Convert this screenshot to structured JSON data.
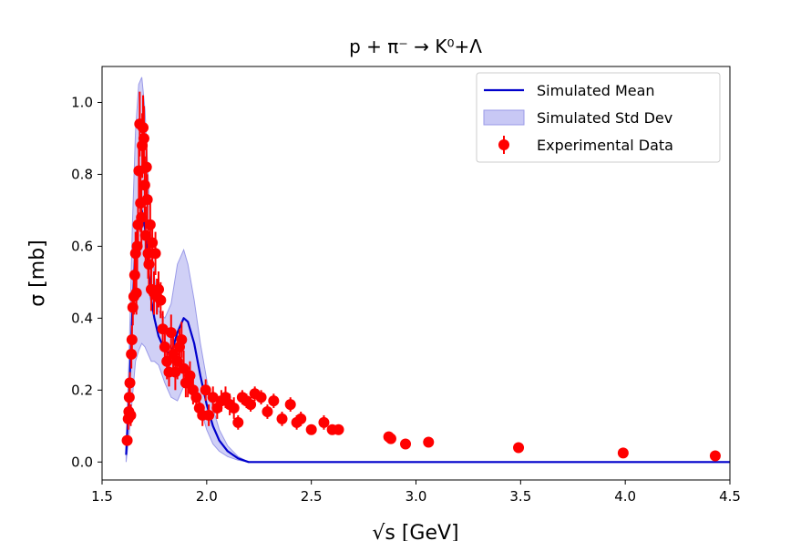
{
  "chart_data": {
    "type": "line",
    "title": "p + π⁻ → K⁰+Λ",
    "xlabel": "√s [GeV]",
    "ylabel": "σ [mb]",
    "xlim": [
      1.5,
      4.5
    ],
    "ylim": [
      -0.05,
      1.1
    ],
    "xticks": [
      1.5,
      2.0,
      2.5,
      3.0,
      3.5,
      4.0,
      4.5
    ],
    "xtick_labels": [
      "1.5",
      "2.0",
      "2.5",
      "3.0",
      "3.5",
      "4.0",
      "4.5"
    ],
    "yticks": [
      0.0,
      0.2,
      0.4,
      0.6,
      0.8,
      1.0
    ],
    "ytick_labels": [
      "0.0",
      "0.2",
      "0.4",
      "0.6",
      "0.8",
      "1.0"
    ],
    "grid": false,
    "legend_position": "top-right",
    "legend": [
      "Simulated Mean",
      "Simulated Std Dev",
      "Experimental Data"
    ],
    "colors": {
      "mean": "#0000cc",
      "band_fill": "#c8c8f5",
      "band_edge": "#9a9ae8",
      "data": "#ff0000"
    },
    "series": [
      {
        "name": "Simulated Mean",
        "x": [
          1.615,
          1.63,
          1.645,
          1.66,
          1.675,
          1.69,
          1.705,
          1.72,
          1.735,
          1.75,
          1.77,
          1.8,
          1.83,
          1.86,
          1.89,
          1.91,
          1.94,
          1.97,
          2.0,
          2.03,
          2.06,
          2.1,
          2.15,
          2.2,
          2.5,
          3.0,
          3.5,
          4.0,
          4.5
        ],
        "y": [
          0.02,
          0.2,
          0.42,
          0.6,
          0.68,
          0.7,
          0.65,
          0.55,
          0.45,
          0.4,
          0.35,
          0.31,
          0.3,
          0.36,
          0.4,
          0.39,
          0.33,
          0.24,
          0.16,
          0.1,
          0.06,
          0.03,
          0.01,
          0.0,
          0.0,
          0.0,
          0.0,
          0.0,
          0.0
        ]
      },
      {
        "name": "Simulated Std Dev",
        "x": [
          1.615,
          1.63,
          1.645,
          1.66,
          1.675,
          1.69,
          1.705,
          1.72,
          1.735,
          1.75,
          1.77,
          1.8,
          1.83,
          1.86,
          1.89,
          1.91,
          1.94,
          1.97,
          2.0,
          2.03,
          2.06,
          2.1,
          2.15,
          2.2,
          2.5,
          3.0,
          3.5,
          4.0,
          4.5
        ],
        "upper": [
          0.04,
          0.32,
          0.66,
          0.92,
          1.05,
          1.07,
          0.98,
          0.8,
          0.62,
          0.52,
          0.42,
          0.4,
          0.44,
          0.55,
          0.59,
          0.55,
          0.45,
          0.33,
          0.23,
          0.15,
          0.09,
          0.045,
          0.015,
          0.0,
          0.0,
          0.0,
          0.0,
          0.0,
          0.0
        ],
        "lower": [
          0.0,
          0.08,
          0.18,
          0.28,
          0.31,
          0.33,
          0.32,
          0.3,
          0.28,
          0.28,
          0.27,
          0.22,
          0.18,
          0.17,
          0.21,
          0.23,
          0.21,
          0.15,
          0.09,
          0.05,
          0.03,
          0.015,
          0.005,
          0.0,
          0.0,
          0.0,
          0.0,
          0.0,
          0.0
        ]
      },
      {
        "name": "Experimental Data",
        "x": [
          1.62,
          1.625,
          1.628,
          1.63,
          1.633,
          1.637,
          1.64,
          1.643,
          1.647,
          1.652,
          1.656,
          1.66,
          1.664,
          1.668,
          1.672,
          1.676,
          1.68,
          1.684,
          1.688,
          1.692,
          1.696,
          1.7,
          1.704,
          1.708,
          1.712,
          1.716,
          1.72,
          1.724,
          1.73,
          1.735,
          1.74,
          1.748,
          1.755,
          1.762,
          1.77,
          1.78,
          1.79,
          1.8,
          1.81,
          1.82,
          1.83,
          1.84,
          1.85,
          1.86,
          1.87,
          1.88,
          1.89,
          1.9,
          1.91,
          1.92,
          1.935,
          1.95,
          1.965,
          1.98,
          1.995,
          2.01,
          2.03,
          2.05,
          2.07,
          2.09,
          2.11,
          2.13,
          2.15,
          2.17,
          2.19,
          2.21,
          2.23,
          2.26,
          2.29,
          2.32,
          2.36,
          2.4,
          2.43,
          2.45,
          2.5,
          2.56,
          2.6,
          2.63,
          2.87,
          2.88,
          2.95,
          3.06,
          3.49,
          3.99,
          4.43
        ],
        "y": [
          0.06,
          0.12,
          0.14,
          0.18,
          0.22,
          0.13,
          0.3,
          0.34,
          0.43,
          0.46,
          0.52,
          0.58,
          0.47,
          0.6,
          0.66,
          0.81,
          0.94,
          0.72,
          0.68,
          0.88,
          0.93,
          0.9,
          0.77,
          0.63,
          0.82,
          0.73,
          0.58,
          0.55,
          0.66,
          0.48,
          0.61,
          0.47,
          0.58,
          0.46,
          0.48,
          0.45,
          0.37,
          0.32,
          0.28,
          0.25,
          0.36,
          0.3,
          0.25,
          0.28,
          0.32,
          0.34,
          0.26,
          0.22,
          0.22,
          0.24,
          0.2,
          0.18,
          0.15,
          0.13,
          0.2,
          0.13,
          0.18,
          0.15,
          0.17,
          0.18,
          0.16,
          0.15,
          0.11,
          0.18,
          0.17,
          0.16,
          0.19,
          0.18,
          0.14,
          0.17,
          0.12,
          0.16,
          0.11,
          0.12,
          0.09,
          0.11,
          0.09,
          0.09,
          0.07,
          0.065,
          0.05,
          0.055,
          0.04,
          0.025,
          0.017
        ],
        "err": [
          0.01,
          0.03,
          0.03,
          0.03,
          0.03,
          0.03,
          0.04,
          0.04,
          0.05,
          0.05,
          0.06,
          0.06,
          0.06,
          0.07,
          0.07,
          0.08,
          0.09,
          0.08,
          0.08,
          0.09,
          0.09,
          0.09,
          0.08,
          0.08,
          0.08,
          0.07,
          0.07,
          0.07,
          0.07,
          0.06,
          0.06,
          0.06,
          0.06,
          0.05,
          0.05,
          0.05,
          0.05,
          0.05,
          0.05,
          0.04,
          0.05,
          0.05,
          0.05,
          0.05,
          0.05,
          0.05,
          0.05,
          0.04,
          0.04,
          0.04,
          0.04,
          0.03,
          0.03,
          0.03,
          0.03,
          0.03,
          0.03,
          0.03,
          0.03,
          0.03,
          0.03,
          0.03,
          0.02,
          0.02,
          0.02,
          0.02,
          0.02,
          0.02,
          0.02,
          0.02,
          0.02,
          0.02,
          0.02,
          0.02,
          0.01,
          0.02,
          0.01,
          0.01,
          0.01,
          0.01,
          0.005,
          0.005,
          0.005,
          0.005,
          0.005
        ]
      }
    ]
  }
}
